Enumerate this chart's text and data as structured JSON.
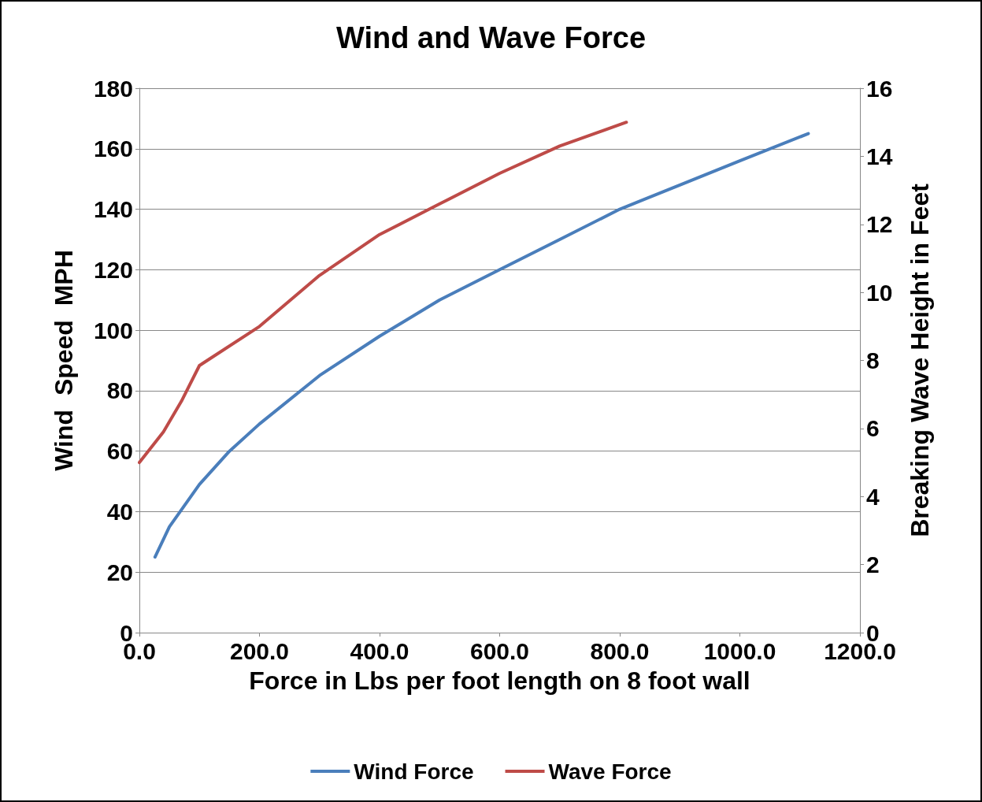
{
  "chart_data": {
    "type": "line",
    "title": "Wind and Wave Force",
    "xlabel": "Force in Lbs per foot length on 8 foot wall",
    "ylabel": "Wind  Speed  MPH",
    "y2label": "Breaking Wave Height in Feet",
    "series": [
      {
        "name": "Wind Force",
        "color": "#4a7ebb",
        "x": [
          26,
          50,
          100,
          150,
          200,
          300,
          400,
          500,
          600,
          700,
          800,
          900,
          1000,
          1114
        ],
        "values": [
          25,
          35,
          49,
          60,
          69,
          85,
          98,
          110,
          120,
          130,
          140,
          148,
          156,
          165
        ]
      },
      {
        "name": "Wave Force",
        "color": "#be4b48",
        "axis": "y2",
        "x": [
          0,
          40,
          70,
          100,
          200,
          300,
          400,
          500,
          600,
          700,
          811
        ],
        "values": [
          5,
          5.9,
          6.8,
          7.85,
          9.0,
          10.5,
          11.7,
          12.6,
          13.5,
          14.3,
          15
        ]
      }
    ],
    "xlim": [
      0,
      1200
    ],
    "xticks": [
      {
        "value": 0,
        "label": "0.0"
      },
      {
        "value": 200,
        "label": "200.0"
      },
      {
        "value": 400,
        "label": "400.0"
      },
      {
        "value": 600,
        "label": "600.0"
      },
      {
        "value": 800,
        "label": "800.0"
      },
      {
        "value": 1000,
        "label": "1000.0"
      },
      {
        "value": 1200,
        "label": "1200.0"
      }
    ],
    "ylim": [
      0,
      180
    ],
    "yticks": [
      0,
      20,
      40,
      60,
      80,
      100,
      120,
      140,
      160,
      180
    ],
    "y2lim": [
      0,
      16
    ],
    "y2ticks": [
      0,
      2,
      4,
      6,
      8,
      10,
      12,
      14,
      16
    ],
    "grid": "y",
    "legend": "bottom",
    "marker": "none",
    "line_style": "solid"
  }
}
